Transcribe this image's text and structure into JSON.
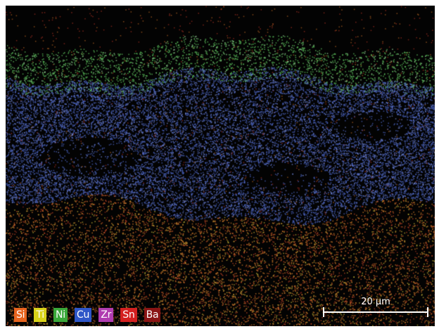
{
  "legend": [
    {
      "label": "Si",
      "color": "#e8641e"
    },
    {
      "label": "Ti",
      "color": "#d9d21a"
    },
    {
      "label": "Ni",
      "color": "#3aa83a"
    },
    {
      "label": "Cu",
      "color": "#2f56c8"
    },
    {
      "label": "Zr",
      "color": "#b03cb0"
    },
    {
      "label": "Sn",
      "color": "#d42020"
    },
    {
      "label": "Ba",
      "color": "#8a1414"
    }
  ],
  "scale_bar": {
    "label": "20 µm"
  }
}
